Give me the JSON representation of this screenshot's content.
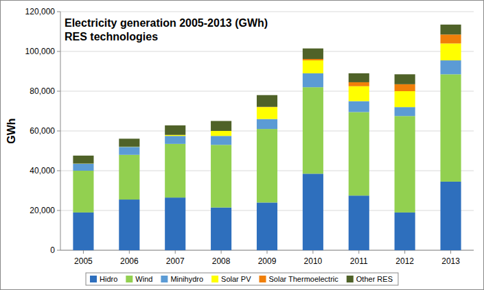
{
  "chart_data": {
    "type": "bar",
    "stacked": true,
    "title": "Electricity generation 2005-2013 (GWh)",
    "subtitle": "RES technologies",
    "y_label": "GWh",
    "categories": [
      "2005",
      "2006",
      "2007",
      "2008",
      "2009",
      "2010",
      "2011",
      "2012",
      "2013"
    ],
    "series": [
      {
        "name": "Hidro",
        "color": "#2e6fbd",
        "values": [
          19000,
          25500,
          26500,
          21500,
          24000,
          38500,
          27500,
          19000,
          34500
        ]
      },
      {
        "name": "Wind",
        "color": "#92d050",
        "values": [
          21000,
          22500,
          27000,
          31500,
          37000,
          43500,
          42000,
          48500,
          54000
        ]
      },
      {
        "name": "Minihydro",
        "color": "#5b9bd5",
        "values": [
          3500,
          4000,
          4000,
          4500,
          5000,
          7000,
          5500,
          4500,
          7000
        ]
      },
      {
        "name": "Solar PV",
        "color": "#ffff00",
        "values": [
          100,
          100,
          500,
          2500,
          6000,
          6500,
          7500,
          8000,
          8500
        ]
      },
      {
        "name": "Solar Thermoelectric",
        "color": "#f07f09",
        "values": [
          0,
          0,
          10,
          15,
          130,
          700,
          2000,
          3500,
          4500
        ]
      },
      {
        "name": "Other RES",
        "color": "#4f6228",
        "values": [
          4000,
          4000,
          4800,
          5000,
          5900,
          5300,
          4500,
          5000,
          5000
        ]
      }
    ],
    "ylim": [
      0,
      120000
    ],
    "yticks": [
      0,
      {
        "value": 20000,
        "label": "20,000"
      },
      {
        "value": 40000,
        "label": "40,000"
      },
      {
        "value": 60000,
        "label": "60,000"
      },
      {
        "value": 80000,
        "label": "80,000"
      },
      {
        "value": 100000,
        "label": "100,000"
      },
      {
        "value": 120000,
        "label": "120,000"
      }
    ],
    "grid": true,
    "legend": "bottom"
  }
}
